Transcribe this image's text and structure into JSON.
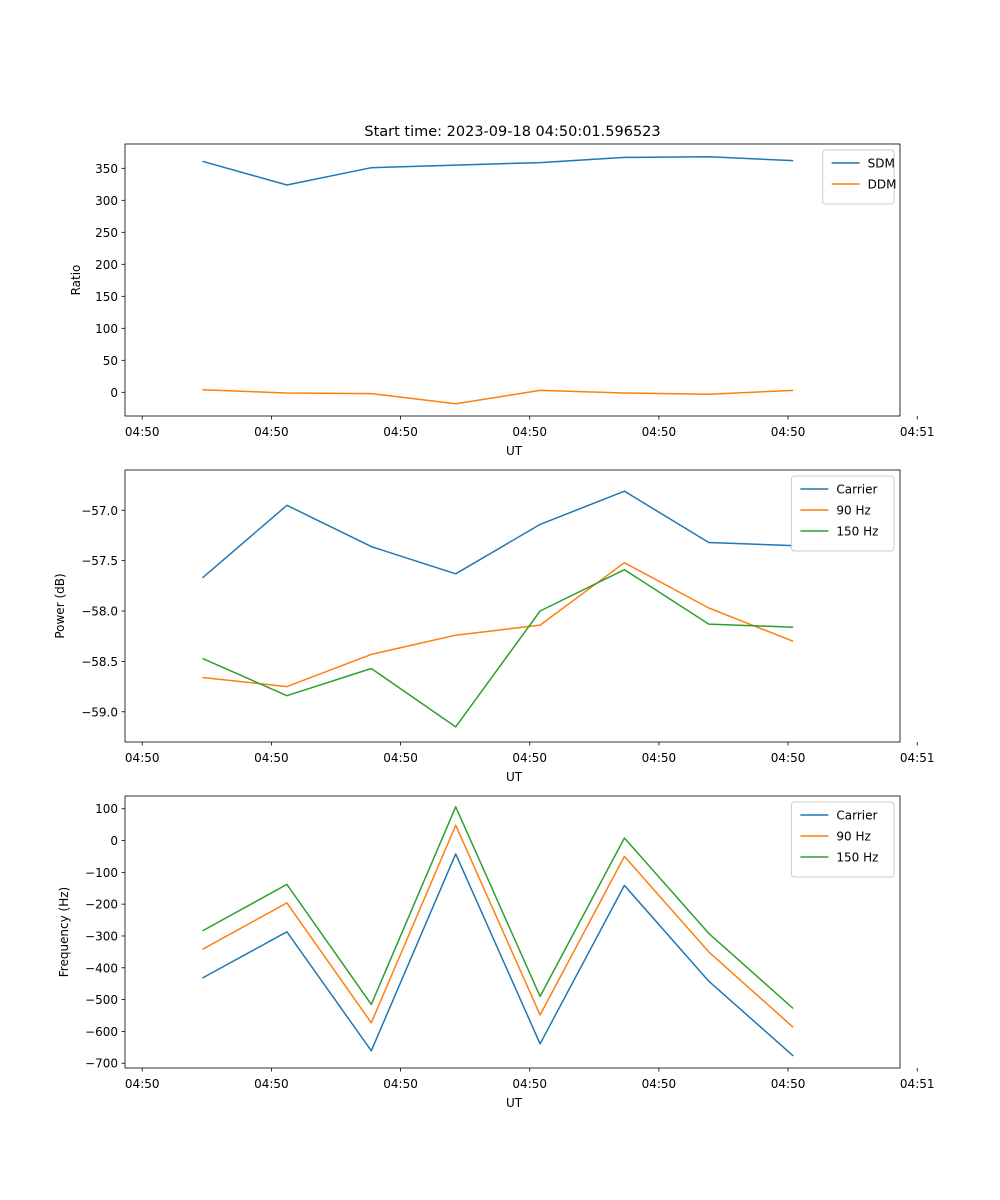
{
  "figure": {
    "title": "Start time: 2023-09-18 04:50:01.596523"
  },
  "colors": {
    "c0": "#1f77b4",
    "c1": "#ff7f0e",
    "c2": "#2ca02c"
  },
  "chart_data": [
    {
      "type": "line",
      "ylabel": "Ratio",
      "xlabel": "UT",
      "xlim": [
        0,
        9
      ],
      "ylim": [
        -37,
        388
      ],
      "xticks": [
        0.2,
        1.7,
        3.2,
        4.7,
        6.2,
        7.7,
        9.2
      ],
      "x_tick_labels": [
        "04:50",
        "04:50",
        "04:50",
        "04:50",
        "04:50",
        "04:50",
        "04:51"
      ],
      "yticks": [
        0,
        50,
        100,
        150,
        200,
        250,
        300,
        350
      ],
      "y_tick_labels": [
        "0",
        "50",
        "100",
        "150",
        "200",
        "250",
        "300",
        "350"
      ],
      "x": [
        0.9,
        1.88,
        2.86,
        3.84,
        4.82,
        5.8,
        6.78,
        7.76
      ],
      "legend": "upper right",
      "series": [
        {
          "name": "SDM",
          "color": "#1f77b4",
          "values": [
            361,
            324,
            351,
            355,
            359,
            367,
            368,
            362
          ]
        },
        {
          "name": "DDM",
          "color": "#ff7f0e",
          "values": [
            4,
            -1,
            -2,
            -18,
            3,
            -1,
            -3,
            3
          ]
        }
      ]
    },
    {
      "type": "line",
      "ylabel": "Power (dB)",
      "xlabel": "UT",
      "xlim": [
        0,
        9
      ],
      "ylim": [
        -59.3,
        -56.6
      ],
      "xticks": [
        0.2,
        1.7,
        3.2,
        4.7,
        6.2,
        7.7,
        9.2
      ],
      "x_tick_labels": [
        "04:50",
        "04:50",
        "04:50",
        "04:50",
        "04:50",
        "04:50",
        "04:51"
      ],
      "yticks": [
        -59.0,
        -58.5,
        -58.0,
        -57.5,
        -57.0
      ],
      "y_tick_labels": [
        "−59.0",
        "−58.5",
        "−58.0",
        "−57.5",
        "−57.0"
      ],
      "x": [
        0.9,
        1.88,
        2.86,
        3.84,
        4.82,
        5.8,
        6.78,
        7.76
      ],
      "legend": "upper right",
      "series": [
        {
          "name": "Carrier",
          "color": "#1f77b4",
          "values": [
            -57.67,
            -56.95,
            -57.36,
            -57.63,
            -57.14,
            -56.81,
            -57.32,
            -57.35
          ]
        },
        {
          "name": "90 Hz",
          "color": "#ff7f0e",
          "values": [
            -58.66,
            -58.75,
            -58.43,
            -58.24,
            -58.14,
            -57.52,
            -57.97,
            -58.3
          ]
        },
        {
          "name": "150 Hz",
          "color": "#2ca02c",
          "values": [
            -58.47,
            -58.84,
            -58.57,
            -59.15,
            -58.0,
            -57.59,
            -58.13,
            -58.16
          ]
        }
      ]
    },
    {
      "type": "line",
      "ylabel": "Frequency (Hz)",
      "xlabel": "UT",
      "xlim": [
        0,
        9
      ],
      "ylim": [
        -715,
        140
      ],
      "xticks": [
        0.2,
        1.7,
        3.2,
        4.7,
        6.2,
        7.7,
        9.2
      ],
      "x_tick_labels": [
        "04:50",
        "04:50",
        "04:50",
        "04:50",
        "04:50",
        "04:50",
        "04:51"
      ],
      "yticks": [
        -700,
        -600,
        -500,
        -400,
        -300,
        -200,
        -100,
        0,
        100
      ],
      "y_tick_labels": [
        "−700",
        "−600",
        "−500",
        "−400",
        "−300",
        "−200",
        "−100",
        "0",
        "100"
      ],
      "x": [
        0.9,
        1.88,
        2.86,
        3.84,
        4.82,
        5.8,
        6.78,
        7.76
      ],
      "legend": "upper right",
      "series": [
        {
          "name": "Carrier",
          "color": "#1f77b4",
          "values": [
            -432,
            -287,
            -661,
            -42,
            -639,
            -141,
            -442,
            -677
          ]
        },
        {
          "name": "90 Hz",
          "color": "#ff7f0e",
          "values": [
            -342,
            -196,
            -573,
            48,
            -548,
            -50,
            -350,
            -587
          ]
        },
        {
          "name": "150 Hz",
          "color": "#2ca02c",
          "values": [
            -284,
            -138,
            -515,
            106,
            -490,
            8,
            -292,
            -528
          ]
        }
      ]
    }
  ]
}
